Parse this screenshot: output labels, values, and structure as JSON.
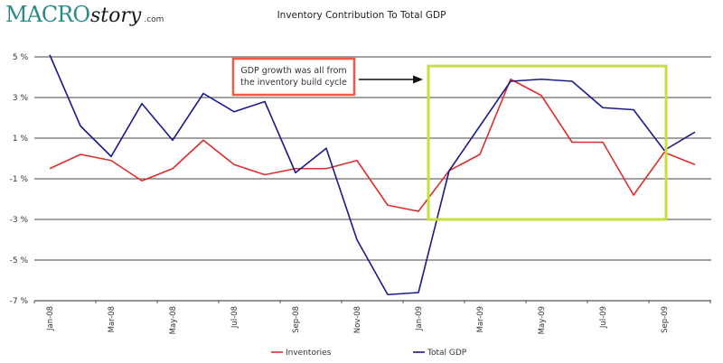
{
  "logo": {
    "main": "MACRO",
    "script": "story",
    "suffix": ".com"
  },
  "annotation": {
    "lines": [
      "GDP growth was all from",
      "the inventory build cycle"
    ],
    "box_color": "#ee5a45",
    "highlight_color": "#c4e03a",
    "highlight_range": {
      "x_from": "Jan-09",
      "x_to": "Sep-09",
      "y_from": -3,
      "y_to": 4.55
    }
  },
  "chart_data": {
    "type": "line",
    "title": "Inventory Contribution To Total GDP",
    "xlabel": "",
    "ylabel": "",
    "x": [
      "Jan-08",
      "Feb-08",
      "Mar-08",
      "Apr-08",
      "May-08",
      "Jun-08",
      "Jul-08",
      "Aug-08",
      "Sep-08",
      "Oct-08",
      "Nov-08",
      "Dec-08",
      "Jan-09",
      "Feb-09",
      "Mar-09",
      "Apr-09",
      "May-09",
      "Jun-09",
      "Jul-09",
      "Aug-09",
      "Sep-09",
      "Oct-09"
    ],
    "x_tick_labels": [
      "Jan-08",
      "Mar-08",
      "May-08",
      "Jul-08",
      "Sep-08",
      "Nov-08",
      "Jan-09",
      "Mar-09",
      "May-09",
      "Jul-09",
      "Sep-09"
    ],
    "ylim": [
      -7,
      5
    ],
    "y_ticks": [
      5,
      3,
      1,
      -1,
      -3,
      -5,
      -7
    ],
    "y_tick_labels": [
      "5 %",
      "3 %",
      "1 %",
      "-1 %",
      "-3 %",
      "-5 %",
      "-7 %"
    ],
    "grid": true,
    "legend_position": "bottom",
    "series": [
      {
        "name": "Inventories",
        "color": "#dd2e2e",
        "values": [
          -0.5,
          0.2,
          -0.1,
          -1.1,
          -0.5,
          0.9,
          -0.3,
          -0.8,
          -0.5,
          -0.5,
          -0.1,
          -2.3,
          -2.6,
          -0.6,
          0.2,
          3.9,
          3.1,
          0.8,
          0.8,
          -1.8,
          0.3,
          -0.3
        ]
      },
      {
        "name": "Total GDP",
        "color": "#1a1a8c",
        "values": [
          5.1,
          1.6,
          0.1,
          2.7,
          0.9,
          3.2,
          2.3,
          2.8,
          -0.7,
          0.5,
          -4.0,
          -6.7,
          -6.6,
          -0.6,
          1.6,
          3.8,
          3.9,
          3.8,
          2.5,
          2.4,
          0.4,
          1.3
        ]
      }
    ]
  }
}
